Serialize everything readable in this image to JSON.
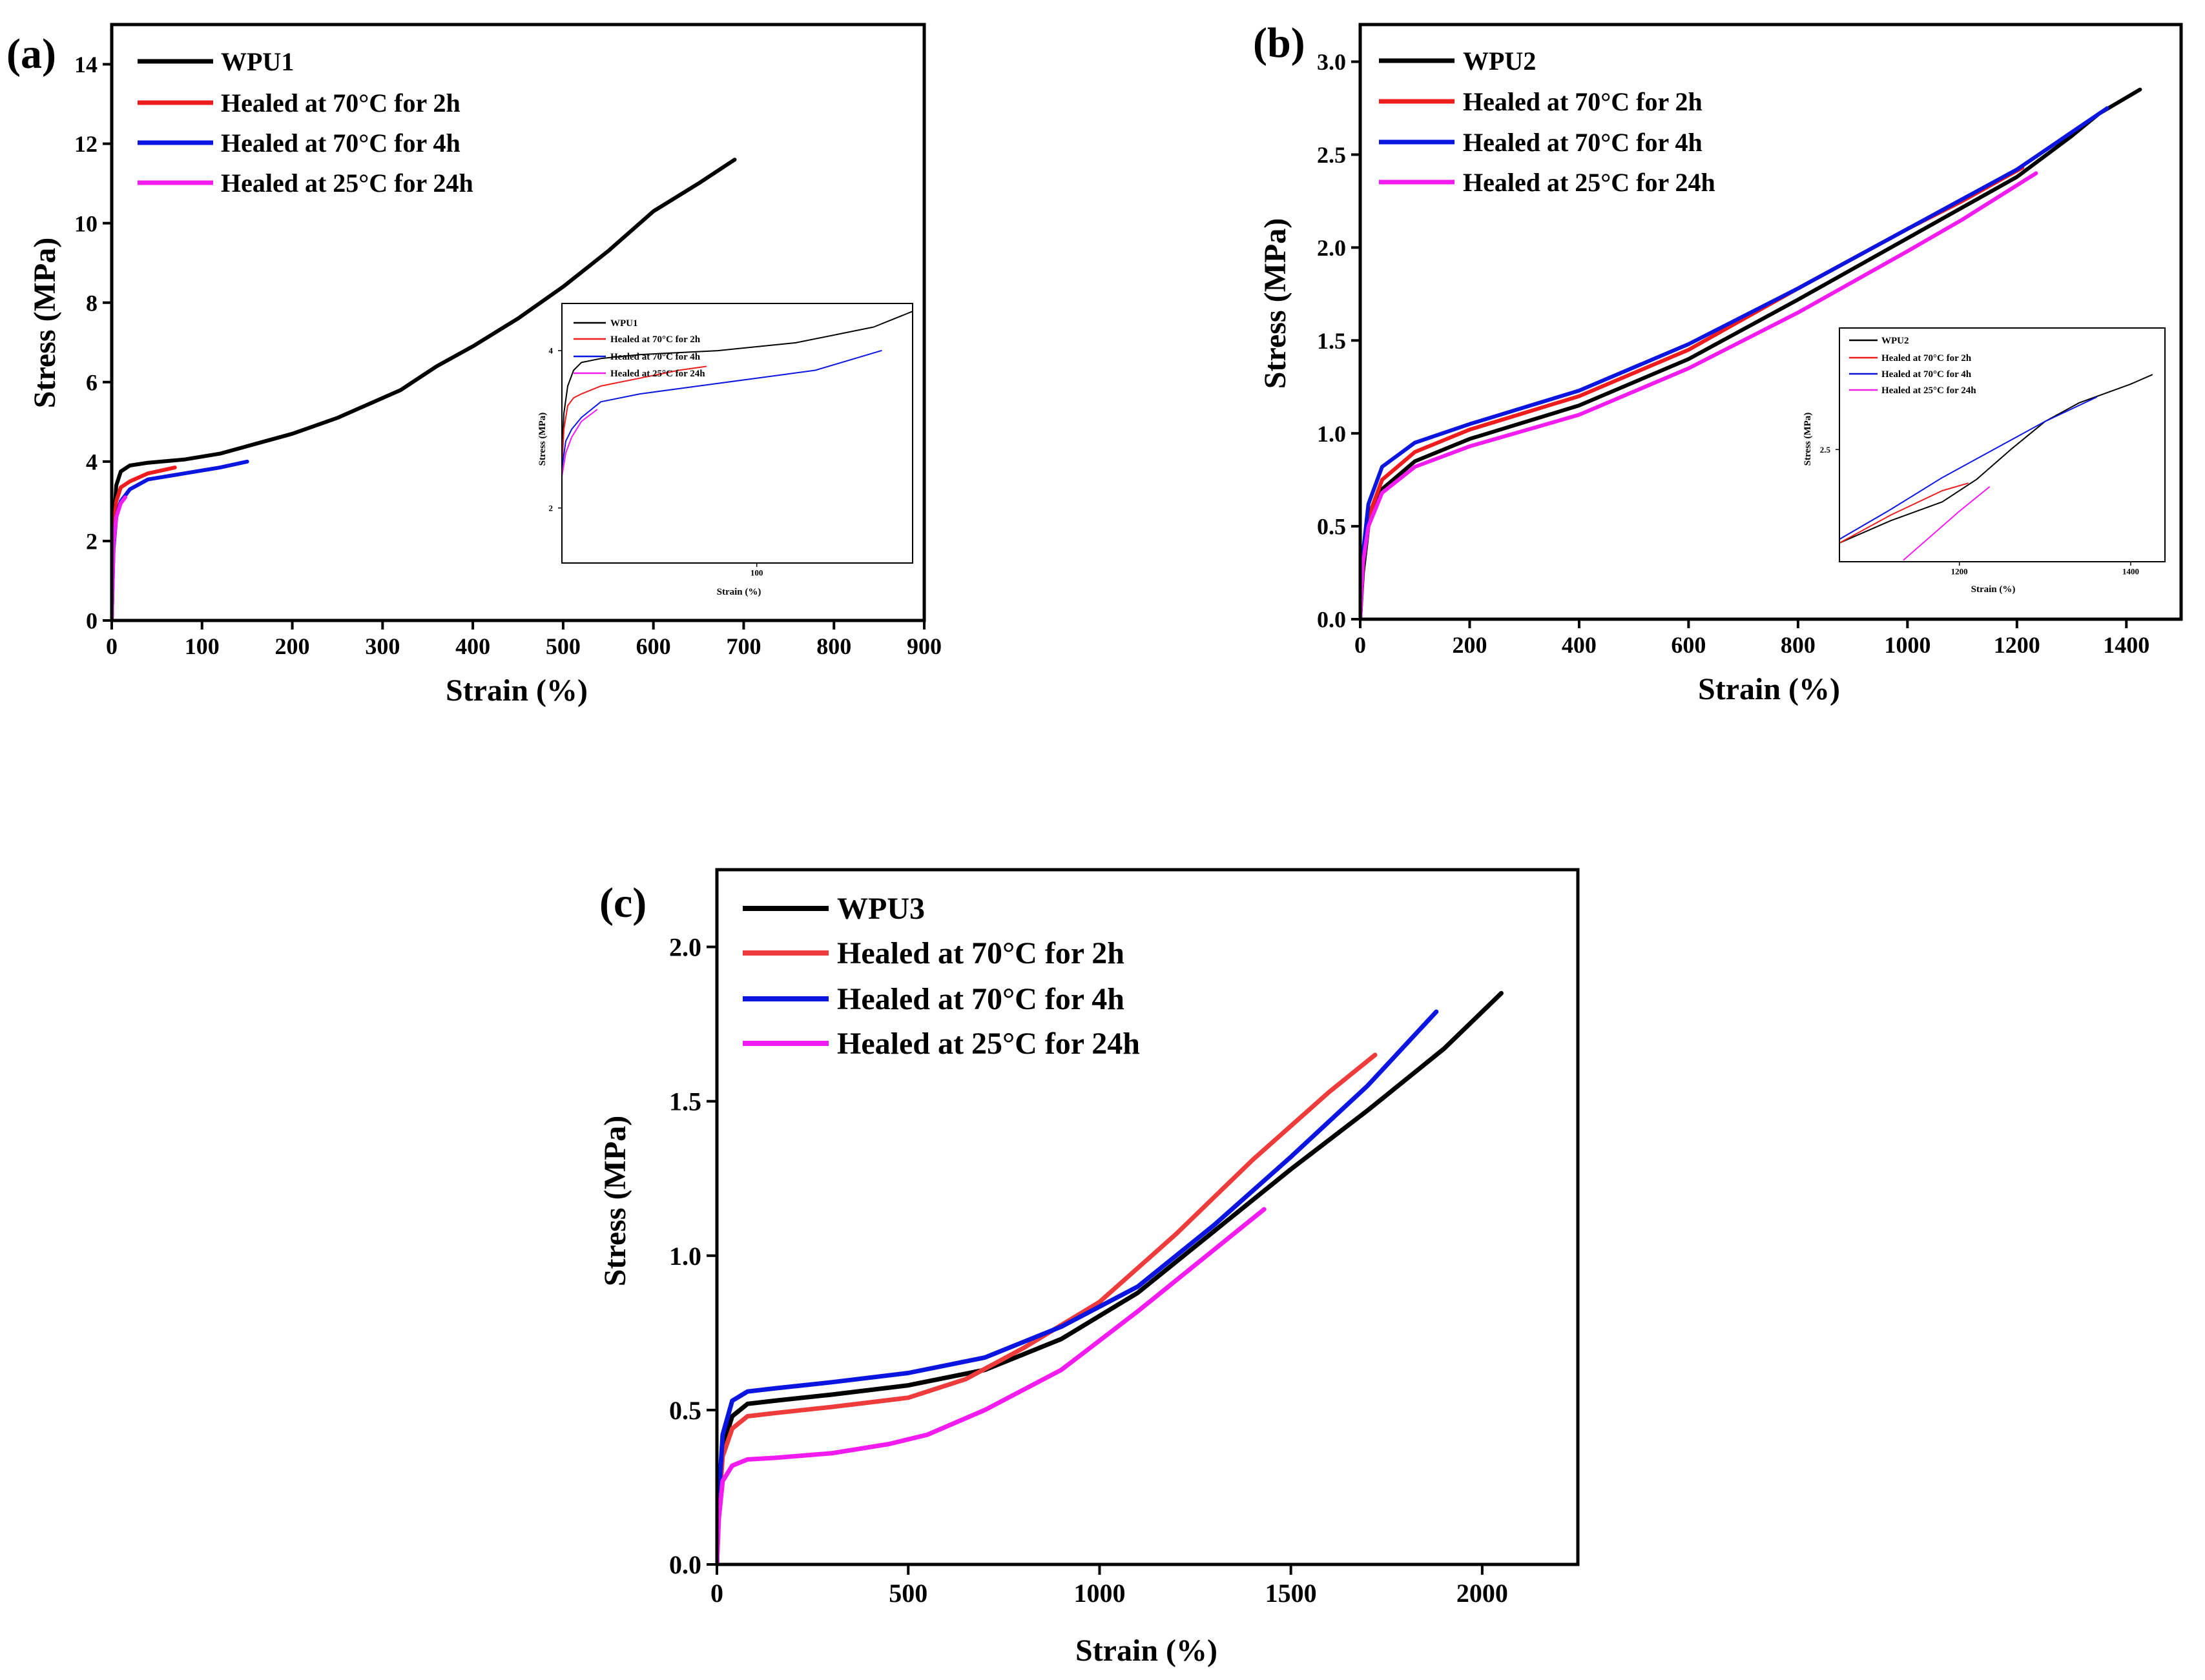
{
  "colors": {
    "black": "#000000",
    "red": "#ee1c1c",
    "blue": "#0a16e0",
    "magenta": "#f21cf0",
    "red_c": "#ee3b3b"
  },
  "chart_data": [
    {
      "type": "line",
      "panel_label": "(a)",
      "xlabel": "Strain (%)",
      "ylabel": "Stress (MPa)",
      "xlim": [
        0,
        900
      ],
      "ylim": [
        0,
        15
      ],
      "xticks": [
        0,
        100,
        200,
        300,
        400,
        500,
        600,
        700,
        800,
        900
      ],
      "yticks": [
        0,
        2,
        4,
        6,
        8,
        10,
        12,
        14
      ],
      "grid": false,
      "legend": "top-left",
      "series": [
        {
          "name": "WPU1",
          "color": "black",
          "x": [
            0,
            2,
            5,
            10,
            20,
            40,
            80,
            120,
            160,
            200,
            250,
            280,
            320,
            360,
            400,
            450,
            500,
            550,
            600,
            650,
            690
          ],
          "y": [
            0,
            2.3,
            3.4,
            3.75,
            3.9,
            3.97,
            4.05,
            4.2,
            4.45,
            4.7,
            5.1,
            5.4,
            5.8,
            6.4,
            6.9,
            7.6,
            8.4,
            9.3,
            10.3,
            11.0,
            11.6
          ]
        },
        {
          "name": "Healed at 70°C for 2h",
          "color": "red",
          "x": [
            0,
            2,
            5,
            10,
            20,
            40,
            70
          ],
          "y": [
            0,
            2.2,
            3.0,
            3.35,
            3.5,
            3.7,
            3.85
          ]
        },
        {
          "name": "Healed at 70°C for 4h",
          "color": "blue",
          "x": [
            0,
            2,
            5,
            10,
            20,
            40,
            80,
            120,
            150
          ],
          "y": [
            0,
            1.8,
            2.6,
            3.0,
            3.3,
            3.55,
            3.7,
            3.85,
            4.0
          ]
        },
        {
          "name": "Healed at 25°C for 24h",
          "color": "magenta",
          "x": [
            0,
            2,
            5,
            10,
            15
          ],
          "y": [
            0,
            1.9,
            2.6,
            2.95,
            3.1
          ]
        }
      ],
      "inset": {
        "xlabel": "Strain (%)",
        "ylabel": "Stress (MPa)",
        "xlim": [
          0,
          180
        ],
        "ylim": [
          1.3,
          4.6
        ],
        "xticks": [
          100
        ],
        "yticks": [
          2,
          4
        ],
        "legend": [
          "WPU1",
          "Healed at 70°C for 2h",
          "Healed at 70°C for 4h",
          "Healed at 25°C for 24h"
        ],
        "series": [
          {
            "name": "WPU1",
            "color": "black",
            "x": [
              0,
              1,
              3,
              6,
              10,
              20,
              40,
              80,
              120,
              160,
              180
            ],
            "y": [
              2.6,
              3.2,
              3.55,
              3.75,
              3.85,
              3.9,
              3.95,
              4.0,
              4.1,
              4.3,
              4.5
            ]
          },
          {
            "name": "Healed at 70°C for 2h",
            "color": "red",
            "x": [
              0,
              1,
              3,
              6,
              10,
              20,
              40,
              60,
              74
            ],
            "y": [
              2.5,
              3.0,
              3.3,
              3.4,
              3.45,
              3.55,
              3.65,
              3.75,
              3.8
            ]
          },
          {
            "name": "Healed at 70°C for 4h",
            "color": "blue",
            "x": [
              0,
              2,
              5,
              10,
              20,
              40,
              70,
              100,
              130,
              164
            ],
            "y": [
              2.5,
              2.85,
              3.0,
              3.15,
              3.35,
              3.45,
              3.55,
              3.65,
              3.75,
              4.0
            ]
          },
          {
            "name": "Healed at 25°C for 24h",
            "color": "magenta",
            "x": [
              0,
              2,
              5,
              10,
              18
            ],
            "y": [
              2.4,
              2.7,
              2.9,
              3.1,
              3.25
            ]
          }
        ]
      }
    },
    {
      "type": "line",
      "panel_label": "(b)",
      "xlabel": "Strain (%)",
      "ylabel": "Stress (MPa)",
      "xlim": [
        0,
        1500
      ],
      "ylim": [
        0,
        3.2
      ],
      "xticks": [
        0,
        200,
        400,
        600,
        800,
        1000,
        1200,
        1400
      ],
      "yticks": [
        0.0,
        0.5,
        1.0,
        1.5,
        2.0,
        2.5,
        3.0
      ],
      "grid": false,
      "legend": "top-left",
      "series": [
        {
          "name": "WPU2",
          "color": "black",
          "x": [
            0,
            5,
            15,
            40,
            100,
            200,
            400,
            600,
            800,
            1000,
            1200,
            1300,
            1350,
            1425
          ],
          "y": [
            0,
            0.25,
            0.5,
            0.7,
            0.85,
            0.97,
            1.15,
            1.4,
            1.72,
            2.05,
            2.38,
            2.6,
            2.72,
            2.85
          ]
        },
        {
          "name": "Healed at 70°C for 2h",
          "color": "red",
          "x": [
            0,
            5,
            15,
            40,
            100,
            200,
            400,
            600,
            800,
            1000,
            1100,
            1210
          ],
          "y": [
            0,
            0.3,
            0.55,
            0.75,
            0.9,
            1.02,
            1.2,
            1.45,
            1.78,
            2.1,
            2.25,
            2.43
          ]
        },
        {
          "name": "Healed at 70°C for 4h",
          "color": "blue",
          "x": [
            0,
            5,
            15,
            40,
            100,
            200,
            400,
            600,
            800,
            1000,
            1200,
            1300,
            1365
          ],
          "y": [
            0,
            0.35,
            0.62,
            0.82,
            0.95,
            1.05,
            1.23,
            1.48,
            1.78,
            2.1,
            2.42,
            2.62,
            2.75
          ]
        },
        {
          "name": "Healed at 25°C for 24h",
          "color": "magenta",
          "x": [
            0,
            5,
            15,
            40,
            100,
            200,
            400,
            600,
            800,
            1000,
            1100,
            1235
          ],
          "y": [
            0,
            0.3,
            0.5,
            0.68,
            0.82,
            0.93,
            1.1,
            1.35,
            1.65,
            1.98,
            2.15,
            2.4
          ]
        }
      ],
      "inset": {
        "xlabel": "Strain (%)",
        "ylabel": "Stress (MPa)",
        "xlim": [
          1060,
          1440
        ],
        "ylim": [
          1.9,
          3.15
        ],
        "xticks": [
          1200,
          1400
        ],
        "yticks": [
          2.5
        ],
        "legend": [
          "WPU2",
          "Healed at 70°C for 2h",
          "Healed at 70°C for 4h",
          "Healed at 25°C for 24h"
        ],
        "series": [
          {
            "name": "WPU2",
            "color": "black",
            "x": [
              1060,
              1120,
              1180,
              1220,
              1260,
              1300,
              1340,
              1400,
              1425
            ],
            "y": [
              2.0,
              2.12,
              2.22,
              2.34,
              2.5,
              2.65,
              2.75,
              2.85,
              2.9
            ]
          },
          {
            "name": "Healed at 70°C for 2h",
            "color": "red",
            "x": [
              1060,
              1120,
              1180,
              1210
            ],
            "y": [
              2.0,
              2.15,
              2.28,
              2.32
            ]
          },
          {
            "name": "Healed at 70°C for 4h",
            "color": "blue",
            "x": [
              1060,
              1120,
              1180,
              1240,
              1300,
              1360
            ],
            "y": [
              2.02,
              2.18,
              2.35,
              2.5,
              2.65,
              2.78
            ]
          },
          {
            "name": "Healed at 25°C for 24h",
            "color": "magenta",
            "x": [
              1135,
              1170,
              1200,
              1235
            ],
            "y": [
              1.91,
              2.05,
              2.17,
              2.3
            ]
          }
        ]
      }
    },
    {
      "type": "line",
      "panel_label": "(c)",
      "xlabel": "Strain (%)",
      "ylabel": "Stress (MPa)",
      "xlim": [
        0,
        2250
      ],
      "ylim": [
        0,
        2.25
      ],
      "xticks": [
        0,
        500,
        1000,
        1500,
        2000
      ],
      "yticks": [
        0.0,
        0.5,
        1.0,
        1.5,
        2.0
      ],
      "grid": false,
      "legend": "top-left",
      "series": [
        {
          "name": "WPU3",
          "color": "black",
          "x": [
            0,
            5,
            15,
            40,
            80,
            150,
            300,
            500,
            700,
            900,
            1100,
            1300,
            1500,
            1700,
            1900,
            2050
          ],
          "y": [
            0,
            0.2,
            0.38,
            0.48,
            0.52,
            0.53,
            0.55,
            0.58,
            0.63,
            0.73,
            0.88,
            1.08,
            1.28,
            1.47,
            1.67,
            1.85
          ]
        },
        {
          "name": "Healed at 70°C for 2h",
          "color": "red_c",
          "x": [
            0,
            5,
            15,
            40,
            80,
            150,
            300,
            500,
            650,
            800,
            1000,
            1200,
            1400,
            1600,
            1720
          ],
          "y": [
            0,
            0.18,
            0.35,
            0.44,
            0.48,
            0.49,
            0.51,
            0.54,
            0.6,
            0.7,
            0.85,
            1.07,
            1.31,
            1.53,
            1.65
          ]
        },
        {
          "name": "Healed at 70°C for 4h",
          "color": "blue",
          "x": [
            0,
            5,
            15,
            40,
            80,
            150,
            300,
            500,
            700,
            900,
            1100,
            1300,
            1500,
            1700,
            1880
          ],
          "y": [
            0,
            0.22,
            0.42,
            0.53,
            0.56,
            0.57,
            0.59,
            0.62,
            0.67,
            0.77,
            0.9,
            1.1,
            1.32,
            1.55,
            1.79
          ]
        },
        {
          "name": "Healed at 25°C for 24h",
          "color": "magenta",
          "x": [
            0,
            5,
            15,
            40,
            80,
            150,
            300,
            450,
            550,
            700,
            900,
            1100,
            1300,
            1430
          ],
          "y": [
            0,
            0.15,
            0.27,
            0.32,
            0.34,
            0.345,
            0.36,
            0.39,
            0.42,
            0.5,
            0.63,
            0.82,
            1.02,
            1.15
          ]
        }
      ]
    }
  ]
}
